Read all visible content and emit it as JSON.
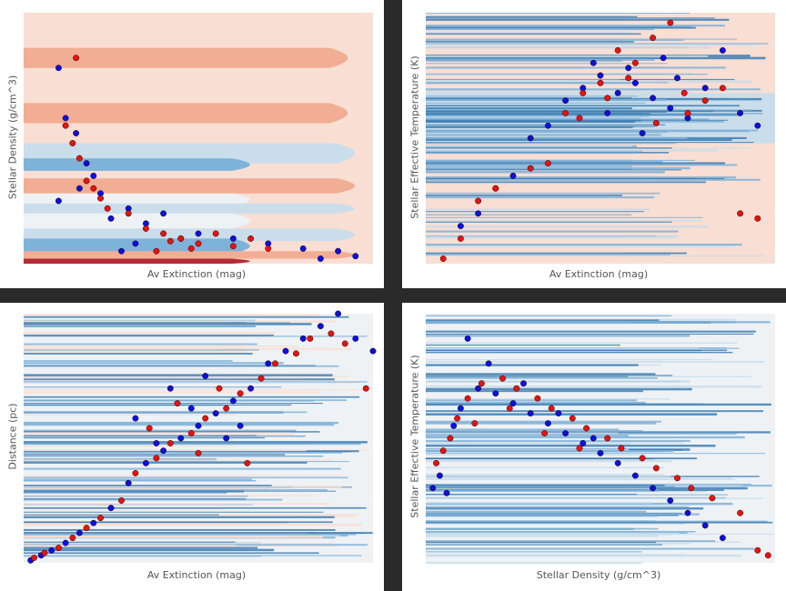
{
  "colors": {
    "class_a": "#0a10e0",
    "class_b": "#e8120f",
    "marker_edge": "#2a0000",
    "map_blue_dark": "#3d7eb3",
    "map_blue_mid": "#7fb2d8",
    "map_blue_light": "#c9ddea",
    "map_neutral": "#eff2f4",
    "map_red_light": "#f8ded3",
    "map_red_mid": "#f2ae95",
    "map_red_dark": "#b22b35"
  },
  "chart_data": [
    {
      "type": "scatter",
      "id": "p1",
      "xlabel": "Av Extinction (mag)",
      "ylabel": "Stellar Density (g/cm^3)",
      "background": "decision-contour",
      "grid": false,
      "legend": "none",
      "series": [
        {
          "values": [
            [
              0.1,
              0.78
            ],
            [
              0.12,
              0.58
            ],
            [
              0.15,
              0.52
            ],
            [
              0.18,
              0.4
            ],
            [
              0.2,
              0.35
            ],
            [
              0.16,
              0.3
            ],
            [
              0.22,
              0.28
            ],
            [
              0.1,
              0.25
            ],
            [
              0.25,
              0.18
            ],
            [
              0.3,
              0.22
            ],
            [
              0.35,
              0.16
            ],
            [
              0.4,
              0.2
            ],
            [
              0.45,
              0.1
            ],
            [
              0.5,
              0.12
            ],
            [
              0.6,
              0.1
            ],
            [
              0.7,
              0.08
            ],
            [
              0.8,
              0.06
            ],
            [
              0.9,
              0.05
            ],
            [
              0.85,
              0.02
            ],
            [
              0.95,
              0.03
            ],
            [
              0.28,
              0.05
            ],
            [
              0.32,
              0.08
            ]
          ]
        },
        {
          "values": [
            [
              0.15,
              0.82
            ],
            [
              0.12,
              0.55
            ],
            [
              0.14,
              0.48
            ],
            [
              0.16,
              0.42
            ],
            [
              0.18,
              0.33
            ],
            [
              0.2,
              0.3
            ],
            [
              0.22,
              0.26
            ],
            [
              0.24,
              0.22
            ],
            [
              0.3,
              0.2
            ],
            [
              0.35,
              0.14
            ],
            [
              0.4,
              0.12
            ],
            [
              0.45,
              0.1
            ],
            [
              0.5,
              0.08
            ],
            [
              0.55,
              0.12
            ],
            [
              0.6,
              0.07
            ],
            [
              0.65,
              0.1
            ],
            [
              0.7,
              0.06
            ],
            [
              0.38,
              0.05
            ],
            [
              0.42,
              0.09
            ],
            [
              0.48,
              0.06
            ]
          ]
        }
      ]
    },
    {
      "type": "scatter",
      "id": "p2",
      "xlabel": "Av Extinction (mag)",
      "ylabel": "Stellar Effective Temperature (K)",
      "background": "decision-contour",
      "grid": false,
      "legend": "none",
      "series": [
        {
          "values": [
            [
              0.1,
              0.15
            ],
            [
              0.15,
              0.2
            ],
            [
              0.2,
              0.3
            ],
            [
              0.25,
              0.35
            ],
            [
              0.3,
              0.5
            ],
            [
              0.35,
              0.55
            ],
            [
              0.4,
              0.65
            ],
            [
              0.45,
              0.7
            ],
            [
              0.5,
              0.75
            ],
            [
              0.55,
              0.68
            ],
            [
              0.6,
              0.72
            ],
            [
              0.65,
              0.66
            ],
            [
              0.7,
              0.62
            ],
            [
              0.75,
              0.58
            ],
            [
              0.8,
              0.7
            ],
            [
              0.85,
              0.85
            ],
            [
              0.9,
              0.6
            ],
            [
              0.95,
              0.55
            ],
            [
              0.48,
              0.8
            ],
            [
              0.52,
              0.6
            ],
            [
              0.58,
              0.78
            ],
            [
              0.62,
              0.52
            ],
            [
              0.68,
              0.82
            ],
            [
              0.72,
              0.74
            ]
          ]
        },
        {
          "values": [
            [
              0.05,
              0.02
            ],
            [
              0.1,
              0.1
            ],
            [
              0.15,
              0.25
            ],
            [
              0.2,
              0.3
            ],
            [
              0.3,
              0.38
            ],
            [
              0.35,
              0.4
            ],
            [
              0.4,
              0.6
            ],
            [
              0.45,
              0.68
            ],
            [
              0.5,
              0.72
            ],
            [
              0.55,
              0.85
            ],
            [
              0.6,
              0.8
            ],
            [
              0.65,
              0.9
            ],
            [
              0.7,
              0.96
            ],
            [
              0.75,
              0.6
            ],
            [
              0.8,
              0.65
            ],
            [
              0.85,
              0.7
            ],
            [
              0.9,
              0.2
            ],
            [
              0.95,
              0.18
            ],
            [
              0.44,
              0.58
            ],
            [
              0.52,
              0.66
            ],
            [
              0.58,
              0.74
            ],
            [
              0.66,
              0.56
            ],
            [
              0.74,
              0.68
            ]
          ]
        }
      ]
    },
    {
      "type": "scatter",
      "id": "p3",
      "xlabel": "Av Extinction (mag)",
      "ylabel": "Distance (pc)",
      "background": "decision-contour",
      "grid": false,
      "legend": "none",
      "series": [
        {
          "values": [
            [
              0.02,
              0.01
            ],
            [
              0.05,
              0.03
            ],
            [
              0.08,
              0.05
            ],
            [
              0.12,
              0.08
            ],
            [
              0.16,
              0.12
            ],
            [
              0.2,
              0.16
            ],
            [
              0.25,
              0.22
            ],
            [
              0.3,
              0.32
            ],
            [
              0.35,
              0.4
            ],
            [
              0.4,
              0.45
            ],
            [
              0.45,
              0.5
            ],
            [
              0.5,
              0.55
            ],
            [
              0.55,
              0.6
            ],
            [
              0.6,
              0.65
            ],
            [
              0.65,
              0.7
            ],
            [
              0.7,
              0.8
            ],
            [
              0.75,
              0.85
            ],
            [
              0.8,
              0.9
            ],
            [
              0.85,
              0.95
            ],
            [
              0.9,
              1.0
            ],
            [
              0.95,
              0.9
            ],
            [
              1.0,
              0.85
            ],
            [
              0.32,
              0.58
            ],
            [
              0.38,
              0.48
            ],
            [
              0.42,
              0.7
            ],
            [
              0.48,
              0.62
            ],
            [
              0.52,
              0.75
            ],
            [
              0.58,
              0.5
            ],
            [
              0.62,
              0.55
            ]
          ]
        },
        {
          "values": [
            [
              0.03,
              0.02
            ],
            [
              0.06,
              0.04
            ],
            [
              0.1,
              0.06
            ],
            [
              0.14,
              0.1
            ],
            [
              0.18,
              0.14
            ],
            [
              0.22,
              0.18
            ],
            [
              0.28,
              0.25
            ],
            [
              0.32,
              0.36
            ],
            [
              0.38,
              0.42
            ],
            [
              0.42,
              0.48
            ],
            [
              0.48,
              0.52
            ],
            [
              0.52,
              0.58
            ],
            [
              0.58,
              0.62
            ],
            [
              0.62,
              0.68
            ],
            [
              0.68,
              0.74
            ],
            [
              0.72,
              0.8
            ],
            [
              0.78,
              0.84
            ],
            [
              0.82,
              0.9
            ],
            [
              0.88,
              0.92
            ],
            [
              0.92,
              0.88
            ],
            [
              0.98,
              0.7
            ],
            [
              0.36,
              0.54
            ],
            [
              0.44,
              0.64
            ],
            [
              0.5,
              0.44
            ],
            [
              0.56,
              0.7
            ],
            [
              0.64,
              0.4
            ]
          ]
        }
      ]
    },
    {
      "type": "scatter",
      "id": "p4",
      "xlabel": "Stellar Density (g/cm^3)",
      "ylabel": "Stellar Effective Temperature (K)",
      "background": "decision-contour",
      "grid": false,
      "legend": "none",
      "series": [
        {
          "values": [
            [
              0.02,
              0.3
            ],
            [
              0.04,
              0.35
            ],
            [
              0.06,
              0.28
            ],
            [
              0.08,
              0.55
            ],
            [
              0.1,
              0.62
            ],
            [
              0.15,
              0.7
            ],
            [
              0.2,
              0.68
            ],
            [
              0.25,
              0.64
            ],
            [
              0.3,
              0.6
            ],
            [
              0.35,
              0.56
            ],
            [
              0.4,
              0.52
            ],
            [
              0.45,
              0.48
            ],
            [
              0.5,
              0.44
            ],
            [
              0.55,
              0.4
            ],
            [
              0.6,
              0.35
            ],
            [
              0.65,
              0.3
            ],
            [
              0.7,
              0.25
            ],
            [
              0.75,
              0.2
            ],
            [
              0.8,
              0.15
            ],
            [
              0.85,
              0.1
            ],
            [
              0.12,
              0.9
            ],
            [
              0.18,
              0.8
            ],
            [
              0.28,
              0.72
            ],
            [
              0.38,
              0.6
            ],
            [
              0.48,
              0.5
            ]
          ]
        },
        {
          "values": [
            [
              0.03,
              0.4
            ],
            [
              0.05,
              0.45
            ],
            [
              0.07,
              0.5
            ],
            [
              0.09,
              0.58
            ],
            [
              0.12,
              0.66
            ],
            [
              0.16,
              0.72
            ],
            [
              0.22,
              0.74
            ],
            [
              0.26,
              0.7
            ],
            [
              0.32,
              0.66
            ],
            [
              0.36,
              0.62
            ],
            [
              0.42,
              0.58
            ],
            [
              0.46,
              0.54
            ],
            [
              0.52,
              0.5
            ],
            [
              0.56,
              0.46
            ],
            [
              0.62,
              0.42
            ],
            [
              0.66,
              0.38
            ],
            [
              0.72,
              0.34
            ],
            [
              0.76,
              0.3
            ],
            [
              0.82,
              0.26
            ],
            [
              0.9,
              0.2
            ],
            [
              0.95,
              0.05
            ],
            [
              0.98,
              0.03
            ],
            [
              0.14,
              0.56
            ],
            [
              0.24,
              0.62
            ],
            [
              0.34,
              0.52
            ],
            [
              0.44,
              0.46
            ]
          ]
        }
      ]
    }
  ]
}
